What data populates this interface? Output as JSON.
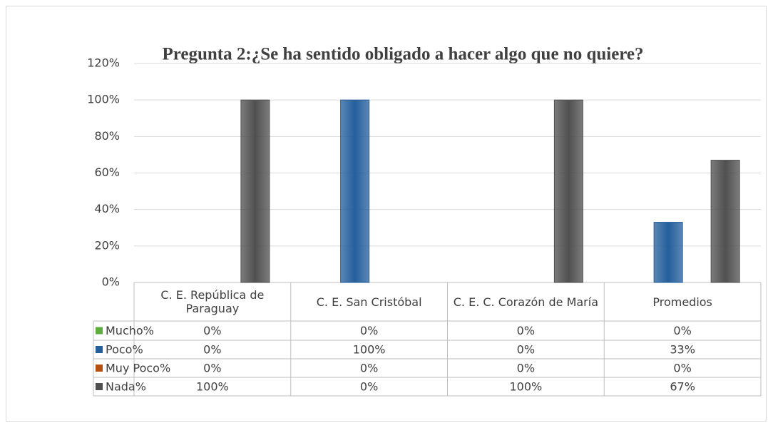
{
  "chart_data": {
    "type": "bar",
    "title": "Pregunta 2:¿Se ha sentido obligado  a hacer algo que no quiere?",
    "categories": [
      "C. E. República de Paraguay",
      "C. E. San Cristóbal",
      "C. E. C. Corazón de María",
      "Promedios"
    ],
    "series": [
      {
        "name": "Mucho%",
        "color": "#5fad3f",
        "values": [
          0,
          0,
          0,
          0
        ],
        "value_labels": [
          "0%",
          "0%",
          "0%",
          "0%"
        ]
      },
      {
        "name": "Poco%",
        "color": "#245f9c",
        "values": [
          0,
          100,
          0,
          33
        ],
        "value_labels": [
          "0%",
          "100%",
          "0%",
          "33%"
        ]
      },
      {
        "name": "Muy Poco%",
        "color": "#b5500f",
        "values": [
          0,
          0,
          0,
          0
        ],
        "value_labels": [
          "0%",
          "0%",
          "0%",
          "0%"
        ]
      },
      {
        "name": "Nada%",
        "color": "#505050",
        "values": [
          100,
          0,
          100,
          67
        ],
        "value_labels": [
          "100%",
          "0%",
          "100%",
          "67%"
        ]
      }
    ],
    "ylim": [
      0,
      120
    ],
    "yticks": [
      {
        "value": 0,
        "label": "0%"
      },
      {
        "value": 20,
        "label": "20%"
      },
      {
        "value": 40,
        "label": "40%"
      },
      {
        "value": 60,
        "label": "60%"
      },
      {
        "value": 80,
        "label": "80%"
      },
      {
        "value": 100,
        "label": "100%"
      },
      {
        "value": 120,
        "label": "120%"
      }
    ],
    "grid": true
  }
}
